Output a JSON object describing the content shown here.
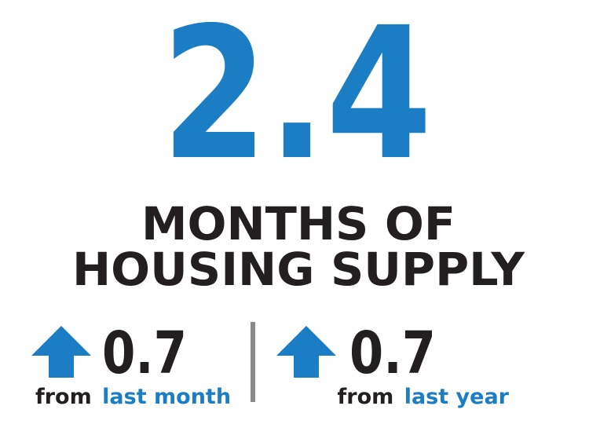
{
  "headline": {
    "value": 2.4,
    "label_lines": [
      "MONTHS OF",
      "HOUSING SUPPLY"
    ]
  },
  "changes": [
    {
      "value": 0.7,
      "prefix": "from",
      "period": "last month"
    },
    {
      "value": 0.7,
      "prefix": "from",
      "period": "last year"
    }
  ]
}
